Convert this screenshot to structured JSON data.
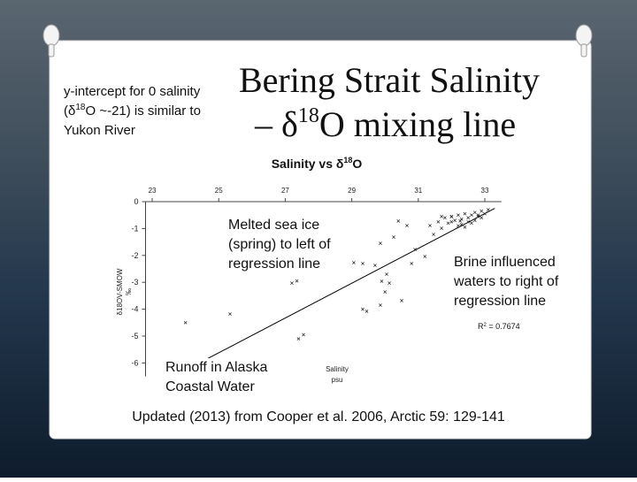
{
  "slide": {
    "title_line1": "Bering Strait Salinity",
    "title_line2_a": "– δ",
    "title_line2_sup": "18",
    "title_line2_b": "O mixing line",
    "note_line1": "y-intercept for 0 salinity",
    "note_line2_a": "(δ",
    "note_line2_sup": "18",
    "note_line2_b": "O ~-21) is similar to",
    "note_line3": "Yukon River",
    "citation": "Updated (2013) from Cooper et al. 2006, Arctic 59: 129-141"
  },
  "chart_data": {
    "type": "scatter",
    "title_a": "Salinity vs δ",
    "title_sup": "18",
    "title_b": "O",
    "x_label": [
      "Salinity",
      "psu"
    ],
    "y_label": [
      "δ18OV-SMOW",
      "‰"
    ],
    "xlim": [
      22.8,
      33.5
    ],
    "ylim": [
      -6.5,
      0
    ],
    "xticks": [
      23,
      25,
      27,
      29,
      31,
      33
    ],
    "yticks": [
      0,
      -1,
      -2,
      -3,
      -4,
      -5,
      -6
    ],
    "grid": false,
    "color": "#222222",
    "x": [
      24.0,
      25.34,
      27.2,
      27.35,
      27.4,
      27.55,
      29.06,
      29.33,
      29.7,
      29.86,
      30.26,
      30.4,
      30.66,
      30.9,
      29.33,
      29.45,
      29.86,
      30.0,
      30.13,
      30.05,
      30.5,
      29.9,
      30.8,
      31.2,
      31.46,
      31.7,
      31.35,
      32.26,
      32.0,
      31.6,
      31.8,
      31.9,
      32.0,
      32.1,
      32.2,
      32.3,
      32.3,
      32.4,
      32.5,
      32.5,
      32.6,
      32.7,
      32.7,
      32.8,
      32.9,
      32.9,
      33.0,
      33.1,
      32.4,
      32.2,
      32.0,
      31.7,
      32.6,
      32.8
    ],
    "y": [
      -4.5,
      -4.18,
      -3.03,
      -2.95,
      -5.1,
      -4.95,
      -2.27,
      -2.3,
      -2.37,
      -1.55,
      -1.32,
      -0.72,
      -0.89,
      -1.78,
      -4.0,
      -4.08,
      -3.85,
      -3.36,
      -3.03,
      -2.7,
      -3.68,
      -2.96,
      -2.3,
      -2.04,
      -1.22,
      -0.99,
      -0.89,
      -0.72,
      -0.56,
      -0.75,
      -0.6,
      -0.8,
      -0.55,
      -0.7,
      -0.5,
      -0.65,
      -0.85,
      -0.45,
      -0.6,
      -0.75,
      -0.5,
      -0.4,
      -0.7,
      -0.55,
      -0.35,
      -0.6,
      -0.45,
      -0.3,
      -0.95,
      -0.9,
      -0.75,
      -0.55,
      -0.8,
      -0.5
    ],
    "trendline": {
      "x": [
        23.8,
        33.3
      ],
      "y": [
        -6.4,
        -0.25
      ],
      "color": "#000000"
    },
    "r2_a": "R",
    "r2_sup": "2",
    "r2_b": " = 0.7674",
    "annotations": [
      {
        "lines": [
          "Melted sea ice",
          "(spring) to left of",
          "regression line"
        ]
      },
      {
        "lines": [
          "Brine influenced",
          "waters to right of",
          "regression line"
        ]
      },
      {
        "lines": [
          "Runoff in Alaska",
          "Coastal Water"
        ]
      }
    ]
  }
}
